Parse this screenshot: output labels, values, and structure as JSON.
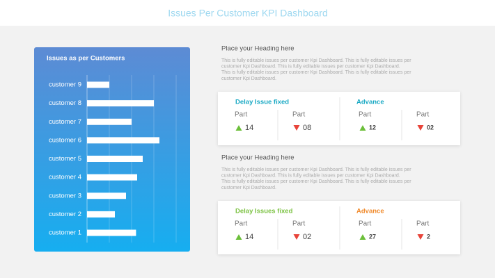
{
  "title": "Issues Per Customer KPI Dashboard",
  "chart_data": {
    "type": "hbar",
    "title": "Issues as per Customers",
    "color": "#ffffff",
    "categories": [
      "customer 9",
      "customer 8",
      "customer 7",
      "customer 6",
      "customer 5",
      "customer 4",
      "customer 3",
      "customer 2",
      "customer 1"
    ],
    "values": [
      1,
      3,
      2,
      3.25,
      2.5,
      2.25,
      1.75,
      1.25,
      2.2
    ],
    "xlim": [
      0,
      4.5
    ],
    "xticks": [
      1,
      2,
      3,
      4
    ],
    "grid": true
  },
  "sections": [
    {
      "heading": "Place your Heading here",
      "paragraph": [
        "This is fully editable issues per customer Kpi Dashboard. This is fully editable issues per",
        "customer Kpi Dashboard. This is fully editable issues per customer Kpi Dashboard.",
        "This is fully editable issues per customer Kpi Dashboard. This is fully editable issues per",
        "customer Kpi Dashboard."
      ],
      "groups": [
        {
          "title": "Delay Issue fixed",
          "color": "#1aa9c4",
          "items": [
            {
              "label": "Part",
              "value": "14",
              "trend": "up"
            },
            {
              "label": "Part",
              "value": "08",
              "trend": "down"
            }
          ]
        },
        {
          "title": "Advance",
          "color": "#1aa9c4",
          "items": [
            {
              "label": "Part",
              "value": "12",
              "trend": "up"
            },
            {
              "label": "Part",
              "value": "02",
              "trend": "down"
            }
          ]
        }
      ]
    },
    {
      "heading": "Place your Heading here",
      "paragraph": [
        "This is fully editable issues per customer Kpi Dashboard. This is fully editable issues per",
        "customer Kpi Dashboard. This is fully editable issues per customer Kpi Dashboard.",
        "This is fully editable issues per customer Kpi Dashboard. This is fully editable issues per",
        "customer Kpi Dashboard."
      ],
      "groups": [
        {
          "title": "Delay Issues fixed",
          "color": "#7cc243",
          "items": [
            {
              "label": "Part",
              "value": "14",
              "trend": "up"
            },
            {
              "label": "Part",
              "value": "02",
              "trend": "down"
            }
          ]
        },
        {
          "title": "Advance",
          "color": "#f08a2c",
          "items": [
            {
              "label": "Part",
              "value": "27",
              "trend": "up"
            },
            {
              "label": "Part",
              "value": "2",
              "trend": "down"
            }
          ]
        }
      ]
    }
  ]
}
